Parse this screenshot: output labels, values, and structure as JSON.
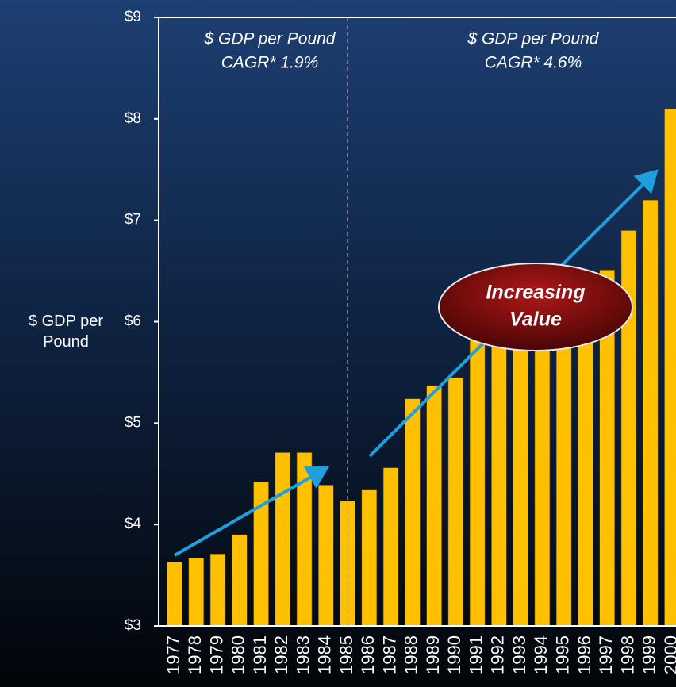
{
  "chart_data": {
    "type": "bar",
    "ylabel": "$ GDP per Pound",
    "categories": [
      "1977",
      "1978",
      "1979",
      "1980",
      "1981",
      "1982",
      "1983",
      "1984",
      "1985",
      "1986",
      "1987",
      "1988",
      "1989",
      "1990",
      "1991",
      "1992",
      "1993",
      "1994",
      "1995",
      "1996",
      "1997",
      "1998",
      "1999",
      "2000"
    ],
    "values": [
      3.63,
      3.67,
      3.71,
      3.9,
      4.42,
      4.71,
      4.71,
      4.39,
      4.23,
      4.34,
      4.56,
      5.24,
      5.37,
      5.45,
      5.9,
      5.9,
      5.95,
      6.0,
      6.05,
      6.2,
      6.51,
      6.9,
      7.2,
      8.1
    ],
    "color": "#ffc000",
    "ylim": [
      3,
      9
    ],
    "yticks": [
      {
        "value": 3,
        "label": "$3"
      },
      {
        "value": 4,
        "label": "$4"
      },
      {
        "value": 5,
        "label": "$5"
      },
      {
        "value": 6,
        "label": "$6"
      },
      {
        "value": 7,
        "label": "$7"
      },
      {
        "value": 8,
        "label": "$8"
      },
      {
        "value": 9,
        "label": "$9"
      }
    ],
    "annotations": [
      [
        "$ GDP per Pound",
        "CAGR* 1.9%"
      ],
      [
        "$ GDP per Pound",
        "CAGR* 4.6%"
      ]
    ],
    "callout": [
      "Increasing",
      "Value"
    ]
  }
}
